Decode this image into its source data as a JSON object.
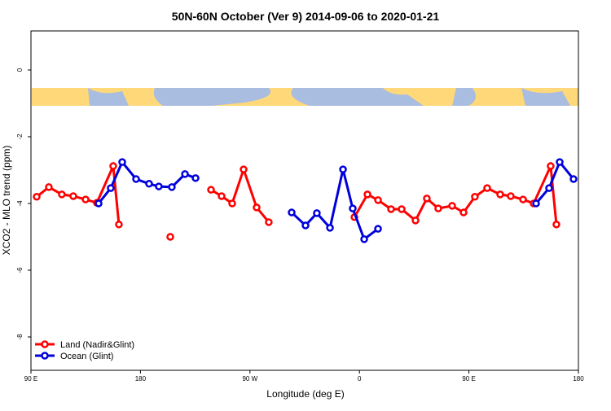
{
  "chart_data": {
    "type": "line",
    "title": "50N-60N October (Ver 9)   2014-09-06 to 2020-01-21",
    "x_label": "Longitude (deg E)",
    "y_label": "XCO2 - MLO trend (ppm)",
    "xlim": [
      90,
      540
    ],
    "xticks": [
      {
        "value": 90,
        "label": "90 E"
      },
      {
        "value": 180,
        "label": "180"
      },
      {
        "value": 270,
        "label": "90 W"
      },
      {
        "value": 360,
        "label": "0"
      },
      {
        "value": 450,
        "label": "90 E"
      },
      {
        "value": 540,
        "label": "180"
      }
    ],
    "ylim": [
      -9,
      1.17
    ],
    "yticks": [
      0,
      -2,
      -4,
      -6,
      -8
    ],
    "legend": "bottom-left",
    "series": [
      {
        "name": "Land (Nadir&Glint)",
        "color": "#ff0000",
        "x": [
          94.7,
          104.7,
          115.4,
          124.8,
          134.9,
          144.2,
          157.6,
          162.3,
          null,
          204.5,
          null,
          238.0,
          246.7,
          255.4,
          264.8,
          275.5,
          285.5,
          null,
          355.9,
          366.6,
          375.3,
          386.0,
          394.7,
          406.1,
          415.4,
          424.8,
          436.2,
          445.6,
          454.9,
          465.0,
          475.7,
          484.4,
          494.5,
          503.2,
          517.2,
          521.9
        ],
        "values": [
          -3.8,
          -3.51,
          -3.73,
          -3.78,
          -3.88,
          -3.98,
          -2.88,
          -4.63,
          null,
          -5.0,
          null,
          -3.59,
          -3.78,
          -4.0,
          -2.98,
          -4.12,
          -4.56,
          null,
          -4.41,
          -3.73,
          -3.9,
          -4.17,
          -4.17,
          -4.51,
          -3.85,
          -4.15,
          -4.07,
          -4.27,
          -3.8,
          -3.54,
          -3.73,
          -3.78,
          -3.88,
          -4.0,
          -2.88,
          -4.63
        ]
      },
      {
        "name": "Ocean (Glint)",
        "color": "#0000dd",
        "x": [
          145.6,
          155.6,
          165.0,
          176.4,
          187.1,
          195.1,
          205.8,
          216.6,
          225.3,
          null,
          304.3,
          315.7,
          325.0,
          335.8,
          346.5,
          354.5,
          363.9,
          375.3,
          null,
          505.2,
          515.9,
          524.6,
          536.0
        ],
        "values": [
          -4.0,
          -3.54,
          -2.76,
          -3.27,
          -3.41,
          -3.49,
          -3.51,
          -3.12,
          -3.24,
          null,
          -4.27,
          -4.66,
          -4.29,
          -4.73,
          -2.98,
          -4.15,
          -5.07,
          -4.76,
          null,
          -4.0,
          -3.54,
          -2.76,
          -3.27
        ]
      }
    ]
  }
}
